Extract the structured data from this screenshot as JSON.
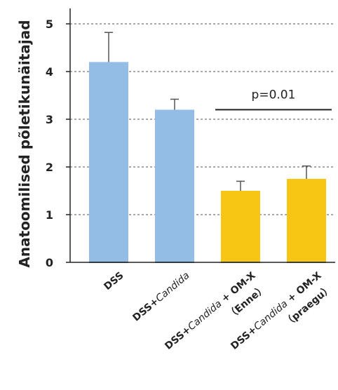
{
  "chart_data": {
    "type": "bar",
    "title": "",
    "ylabel": "Anatoomilised põletikunäitajad",
    "ylim": [
      0,
      5
    ],
    "yticks": [
      0,
      1,
      2,
      3,
      4,
      5
    ],
    "grid": "dashed horizontal",
    "categories": [
      {
        "parts": [
          {
            "t": "DSS",
            "i": false
          }
        ]
      },
      {
        "parts": [
          {
            "t": "DSS+",
            "i": false
          },
          {
            "t": "Candida",
            "i": true
          }
        ]
      },
      {
        "parts": [
          {
            "t": "DSS+",
            "i": false
          },
          {
            "t": "Candida",
            "i": true
          },
          {
            "t": " + OM-X",
            "i": false
          }
        ],
        "sub": "（Enne）"
      },
      {
        "parts": [
          {
            "t": "DSS+",
            "i": false
          },
          {
            "t": "Candida",
            "i": true
          },
          {
            "t": " + OM-X",
            "i": false
          }
        ],
        "sub": "（praegu）"
      }
    ],
    "values": [
      4.2,
      3.2,
      1.5,
      1.75
    ],
    "errors": [
      0.62,
      0.22,
      0.2,
      0.27
    ],
    "colors": [
      "#94bde6",
      "#94bde6",
      "#f7c614",
      "#f7c614"
    ],
    "annotation": {
      "text": "p=0.01",
      "between": [
        2,
        3
      ],
      "level": 3.2
    }
  }
}
